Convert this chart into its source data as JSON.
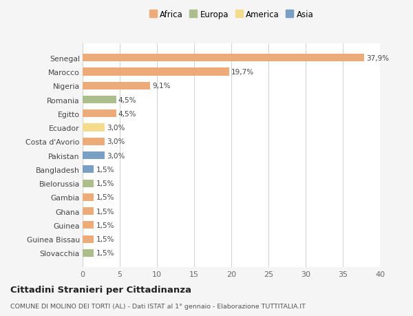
{
  "countries": [
    "Senegal",
    "Marocco",
    "Nigeria",
    "Romania",
    "Egitto",
    "Ecuador",
    "Costa d'Avorio",
    "Pakistan",
    "Bangladesh",
    "Bielorussia",
    "Gambia",
    "Ghana",
    "Guinea",
    "Guinea Bissau",
    "Slovacchia"
  ],
  "values": [
    37.9,
    19.7,
    9.1,
    4.5,
    4.5,
    3.0,
    3.0,
    3.0,
    1.5,
    1.5,
    1.5,
    1.5,
    1.5,
    1.5,
    1.5
  ],
  "labels": [
    "37,9%",
    "19,7%",
    "9,1%",
    "4,5%",
    "4,5%",
    "3,0%",
    "3,0%",
    "3,0%",
    "1,5%",
    "1,5%",
    "1,5%",
    "1,5%",
    "1,5%",
    "1,5%",
    "1,5%"
  ],
  "colors": [
    "#EDAB7A",
    "#EDAB7A",
    "#EDAB7A",
    "#ABBE8C",
    "#EDAB7A",
    "#F5DC8C",
    "#EDAB7A",
    "#7A9FC4",
    "#7A9FC4",
    "#ABBE8C",
    "#EDAB7A",
    "#EDAB7A",
    "#EDAB7A",
    "#EDAB7A",
    "#ABBE8C"
  ],
  "legend": [
    {
      "label": "Africa",
      "color": "#EDAB7A"
    },
    {
      "label": "Europa",
      "color": "#ABBE8C"
    },
    {
      "label": "America",
      "color": "#F5DC8C"
    },
    {
      "label": "Asia",
      "color": "#7A9FC4"
    }
  ],
  "title": "Cittadini Stranieri per Cittadinanza",
  "subtitle": "COMUNE DI MOLINO DEI TORTI (AL) - Dati ISTAT al 1° gennaio - Elaborazione TUTTITALIA.IT",
  "xlim": [
    0,
    40
  ],
  "xticks": [
    0,
    5,
    10,
    15,
    20,
    25,
    30,
    35,
    40
  ],
  "background_color": "#f5f5f5",
  "plot_background": "#ffffff"
}
